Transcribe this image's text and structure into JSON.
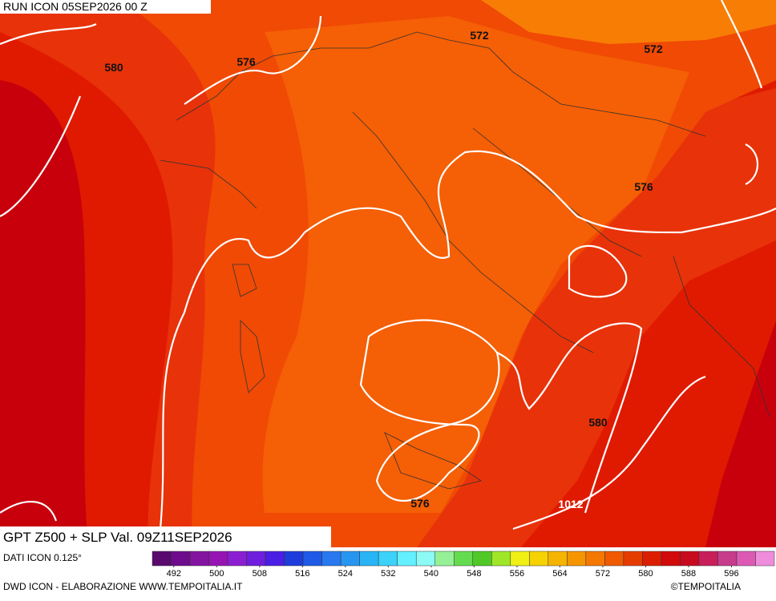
{
  "header": {
    "run": "RUN ICON 05SEP2026 00 Z"
  },
  "map": {
    "contour_labels": [
      "580",
      "576",
      "572",
      "572",
      "576",
      "580",
      "576",
      "1012"
    ]
  },
  "caption": "GPT Z500 + SLP Val. 09Z11SEP2026",
  "source": "DATI ICON 0.125°",
  "colorbar": {
    "range": [
      488,
      604
    ],
    "ticks": [
      492,
      500,
      508,
      516,
      524,
      532,
      540,
      548,
      556,
      564,
      572,
      580,
      588,
      596
    ],
    "colors": [
      "#5a0a6e",
      "#6e0a8c",
      "#8214a0",
      "#9614b4",
      "#8c1ed2",
      "#6e1edc",
      "#4b1ee6",
      "#1e3cdc",
      "#1e5ae6",
      "#2878f0",
      "#2896f0",
      "#28b4f5",
      "#3cd2fa",
      "#64f0ff",
      "#8cfaf5",
      "#96f096",
      "#64dc50",
      "#50c828",
      "#a0e628",
      "#f0f014",
      "#f5d200",
      "#f5b400",
      "#f59600",
      "#f57800",
      "#f05a00",
      "#e63c00",
      "#dc1e00",
      "#d20a0a",
      "#c80a1e",
      "#c81e5a",
      "#c83c8c",
      "#dc5ab4",
      "#f08cdc"
    ]
  },
  "footer": {
    "left": "DWD ICON - ELABORAZIONE WWW.TEMPOITALIA.IT",
    "right": "©TEMPOITALIA"
  }
}
